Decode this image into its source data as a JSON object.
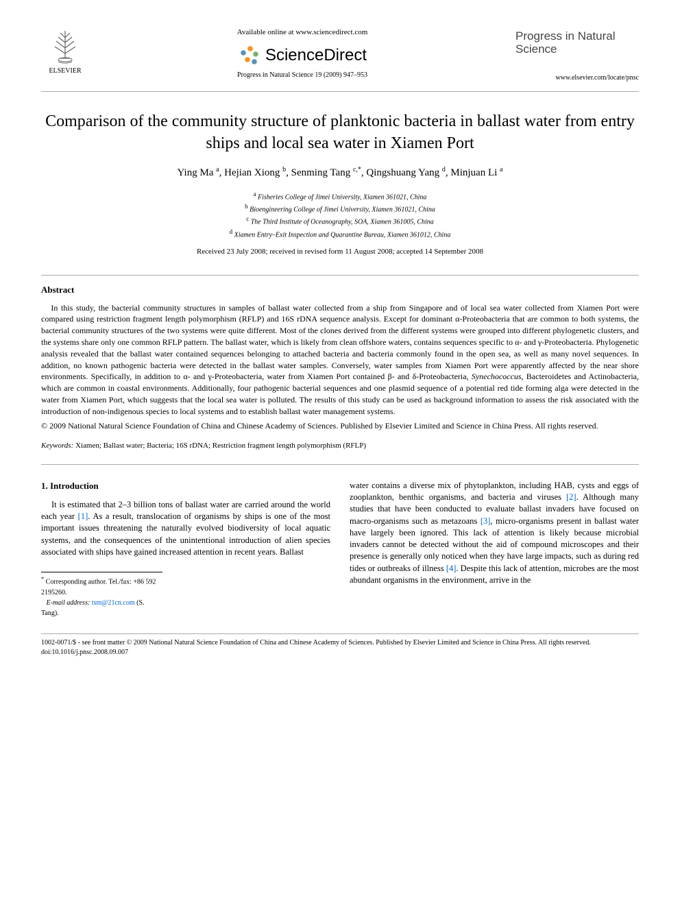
{
  "header": {
    "publisher_name": "ELSEVIER",
    "available_online": "Available online at www.sciencedirect.com",
    "sciencedirect": "ScienceDirect",
    "journal_ref": "Progress in Natural Science 19 (2009) 947–953",
    "journal_title": "Progress in Natural Science",
    "journal_url": "www.elsevier.com/locate/pnsc",
    "colors": {
      "rule": "#aaaaaa",
      "link": "#0066cc",
      "text": "#000000",
      "journal_title_gray": "#444444",
      "sd_orange": "#f7931e",
      "sd_blue": "#5b8fb9",
      "sd_green": "#7fb069"
    }
  },
  "paper": {
    "title": "Comparison of the community structure of planktonic bacteria in ballast water from entry ships and local sea water in Xiamen Port",
    "authors_html": "Ying Ma <sup>a</sup>, Hejian Xiong <sup>b</sup>, Senming Tang <sup>c,*</sup>, Qingshuang Yang <sup>d</sup>, Minjuan Li <sup>a</sup>",
    "affiliations": [
      {
        "sup": "a",
        "text": "Fisheries College of Jimei University, Xiamen 361021, China"
      },
      {
        "sup": "b",
        "text": "Bioengineering College of Jimei University, Xiamen 361021, China"
      },
      {
        "sup": "c",
        "text": "The Third Institute of Oceanography, SOA, Xiamen 361005, China"
      },
      {
        "sup": "d",
        "text": "Xiamen Entry–Exit Inspection and Quarantine Bureau, Xiamen 361012, China"
      }
    ],
    "dates": "Received 23 July 2008; received in revised form 11 August 2008; accepted 14 September 2008"
  },
  "abstract": {
    "heading": "Abstract",
    "text": "In this study, the bacterial community structures in samples of ballast water collected from a ship from Singapore and of local sea water collected from Xiamen Port were compared using restriction fragment length polymorphism (RFLP) and 16S rDNA sequence analysis. Except for dominant α-Proteobacteria that are common to both systems, the bacterial community structures of the two systems were quite different. Most of the clones derived from the different systems were grouped into different phylogenetic clusters, and the systems share only one common RFLP pattern. The ballast water, which is likely from clean offshore waters, contains sequences specific to α- and γ-Proteobacteria. Phylogenetic analysis revealed that the ballast water contained sequences belonging to attached bacteria and bacteria commonly found in the open sea, as well as many novel sequences. In addition, no known pathogenic bacteria were detected in the ballast water samples. Conversely, water samples from Xiamen Port were apparently affected by the near shore environments. Specifically, in addition to α- and γ-Proteobacteria, water from Xiamen Port contained β- and δ-Proteobacteria, Synechococcus, Bacteroidetes and Actinobacteria, which are common in coastal environments. Additionally, four pathogenic bacterial sequences and one plasmid sequence of a potential red tide forming alga were detected in the water from Xiamen Port, which suggests that the local sea water is polluted. The results of this study can be used as background information to assess the risk associated with the introduction of non-indigenous species to local systems and to establish ballast water management systems.",
    "copyright": "© 2009 National Natural Science Foundation of China and Chinese Academy of Sciences. Published by Elsevier Limited and Science in China Press. All rights reserved."
  },
  "keywords": {
    "label": "Keywords:",
    "text": "Xiamen; Ballast water; Bacteria; 16S rDNA; Restriction fragment length polymorphism (RFLP)"
  },
  "intro": {
    "heading": "1. Introduction",
    "col1": "It is estimated that 2–3 billion tons of ballast water are carried around the world each year [1]. As a result, translocation of organisms by ships is one of the most important issues threatening the naturally evolved biodiversity of local aquatic systems, and the consequences of the unintentional introduction of alien species associated with ships have gained increased attention in recent years. Ballast",
    "col2": "water contains a diverse mix of phytoplankton, including HAB, cysts and eggs of zooplankton, benthic organisms, and bacteria and viruses [2]. Although many studies that have been conducted to evaluate ballast invaders have focused on macro-organisms such as metazoans [3], micro-organisms present in ballast water have largely been ignored. This lack of attention is likely because microbial invaders cannot be detected without the aid of compound microscopes and their presence is generally only noticed when they have large impacts, such as during red tides or outbreaks of illness [4]. Despite this lack of attention, microbes are the most abundant organisms in the environment, arrive in the"
  },
  "corresponding": {
    "line1": "Corresponding author. Tel./fax: +86 592 2195260.",
    "email_label": "E-mail address:",
    "email": "tsm@21cn.com",
    "email_author": "(S. Tang)."
  },
  "footer": {
    "line1": "1002-0071/$ - see front matter © 2009 National Natural Science Foundation of China and Chinese Academy of Sciences. Published by Elsevier Limited and Science in China Press. All rights reserved.",
    "doi": "doi:10.1016/j.pnsc.2008.09.007"
  }
}
